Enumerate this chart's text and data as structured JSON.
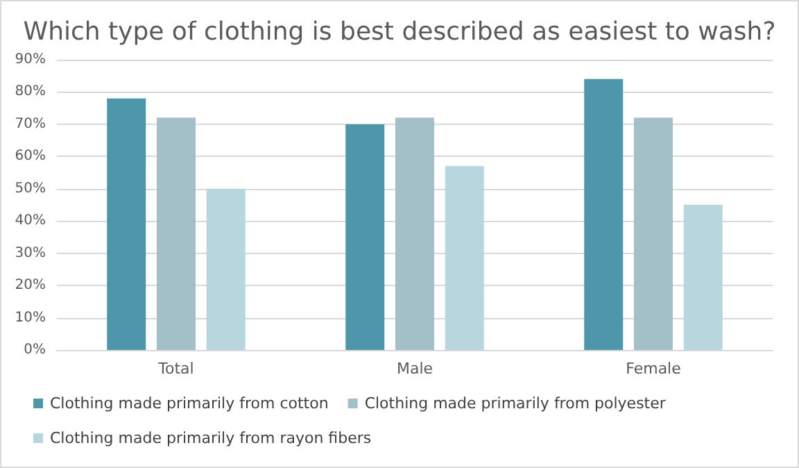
{
  "chart_data": {
    "type": "bar",
    "title": "Which type of clothing is best described as easiest to wash?",
    "categories": [
      "Total",
      "Male",
      "Female"
    ],
    "series": [
      {
        "name": "Clothing made primarily from cotton",
        "color": "#4e97ab",
        "values": [
          78,
          70,
          84
        ]
      },
      {
        "name": "Clothing made primarily from polyester",
        "color": "#a3c0c8",
        "values": [
          72,
          72,
          72
        ]
      },
      {
        "name": "Clothing made primarily from rayon fibers",
        "color": "#b8d6dd",
        "values": [
          50,
          57,
          45
        ]
      }
    ],
    "ylim": [
      0,
      90
    ],
    "yticks": [
      {
        "value": 0,
        "label": "0%"
      },
      {
        "value": 10,
        "label": "10%"
      },
      {
        "value": 20,
        "label": "20%"
      },
      {
        "value": 30,
        "label": "30%"
      },
      {
        "value": 40,
        "label": "40%"
      },
      {
        "value": 50,
        "label": "50%"
      },
      {
        "value": 60,
        "label": "60%"
      },
      {
        "value": 70,
        "label": "70%"
      },
      {
        "value": 80,
        "label": "80%"
      },
      {
        "value": 90,
        "label": "90%"
      }
    ],
    "grid": "y",
    "legend": "bottom"
  }
}
